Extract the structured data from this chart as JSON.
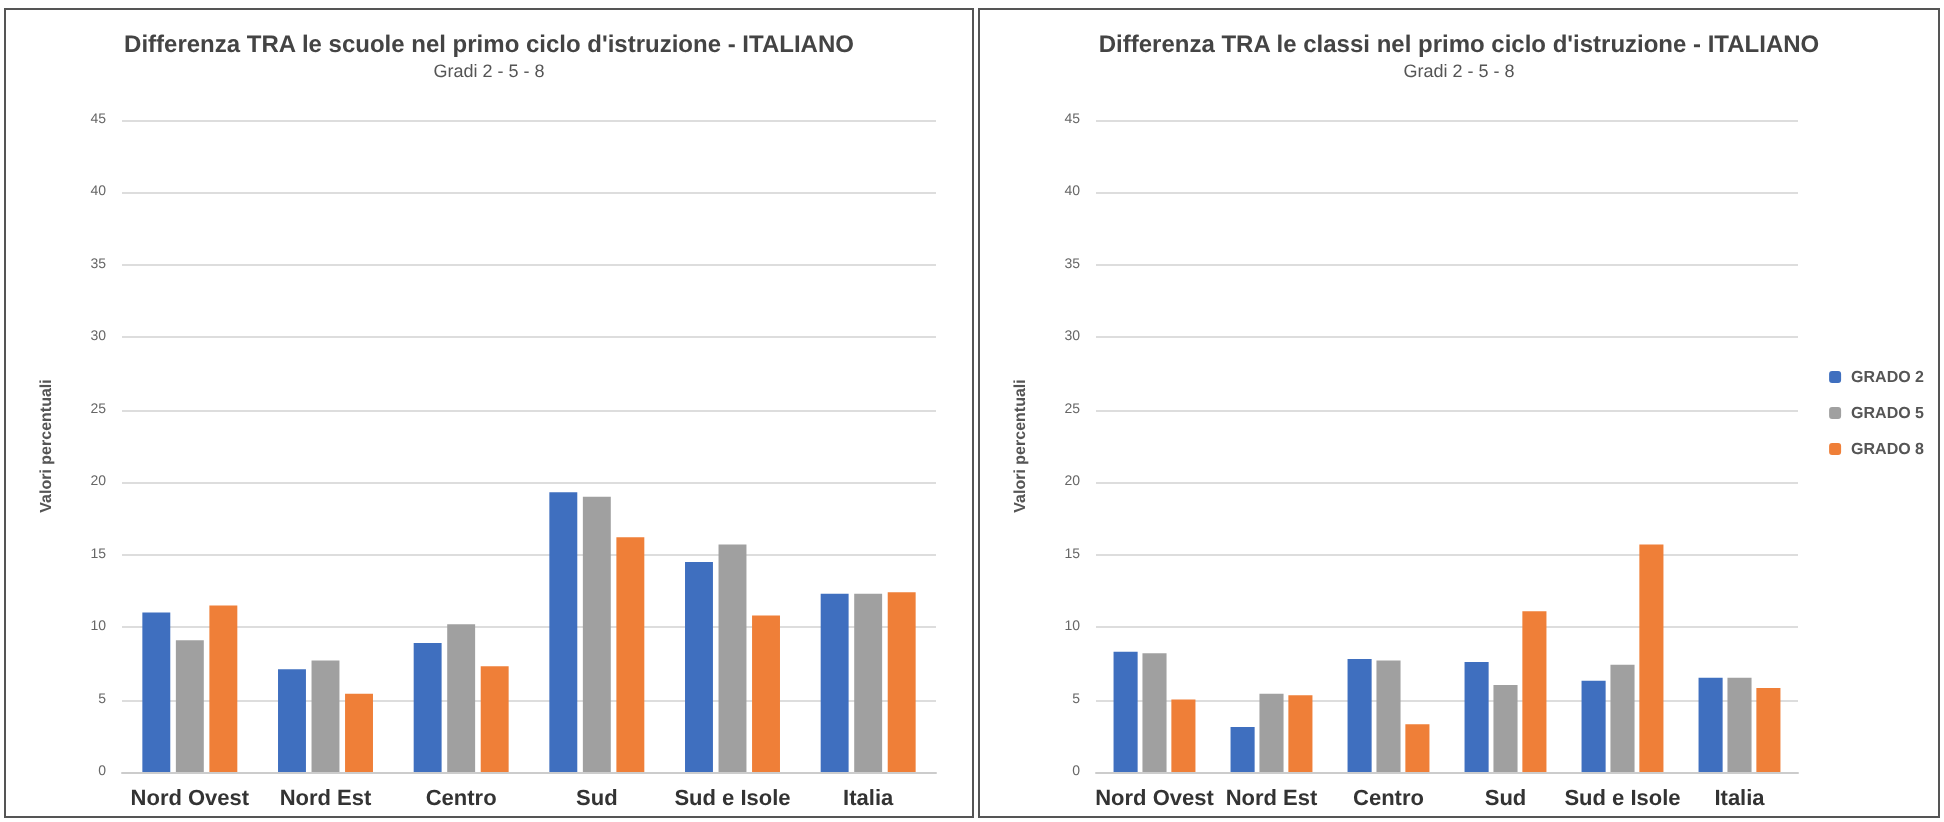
{
  "chart_data": [
    {
      "type": "bar",
      "title": "Differenza TRA le scuole nel primo ciclo d'istruzione - ITALIANO",
      "subtitle": "Gradi 2 - 5 - 8",
      "ylabel": "Valori percentuali",
      "categories": [
        "Nord Ovest",
        "Nord Est",
        "Centro",
        "Sud",
        "Sud e Isole",
        "Italia"
      ],
      "series": [
        {
          "color": "#3f6fbf",
          "values": [
            11,
            7.1,
            8.9,
            19.3,
            14.5,
            12.3
          ]
        },
        {
          "color": "#a0a0a0",
          "values": [
            9.1,
            7.7,
            10.2,
            19,
            15.7,
            12.3
          ]
        },
        {
          "color": "#ef7f38",
          "values": [
            11.5,
            5.4,
            7.3,
            16.2,
            10.8,
            12.4
          ]
        }
      ],
      "ylim": [
        0,
        45
      ],
      "yticks": [
        0,
        5,
        10,
        15,
        20,
        25,
        30,
        35,
        40,
        45
      ],
      "grid": "y",
      "legend": false
    },
    {
      "type": "bar",
      "title": "Differenza TRA le classi nel primo ciclo d'istruzione - ITALIANO",
      "subtitle": "Gradi 2 - 5 - 8",
      "ylabel": "Valori percentuali",
      "categories": [
        "Nord Ovest",
        "Nord Est",
        "Centro",
        "Sud",
        "Sud e Isole",
        "Italia"
      ],
      "series": [
        {
          "name": "GRADO 2",
          "color": "#3f6fbf",
          "values": [
            8.3,
            3.1,
            7.8,
            7.6,
            6.3,
            6.5
          ]
        },
        {
          "name": "GRADO 5",
          "color": "#a0a0a0",
          "values": [
            8.2,
            5.4,
            7.7,
            6,
            7.4,
            6.5
          ]
        },
        {
          "name": "GRADO 8",
          "color": "#ef7f38",
          "values": [
            5,
            5.3,
            3.3,
            11.1,
            15.7,
            5.8
          ]
        }
      ],
      "ylim": [
        0,
        45
      ],
      "yticks": [
        0,
        5,
        10,
        15,
        20,
        25,
        30,
        35,
        40,
        45
      ],
      "grid": "y",
      "legend": "right"
    }
  ]
}
